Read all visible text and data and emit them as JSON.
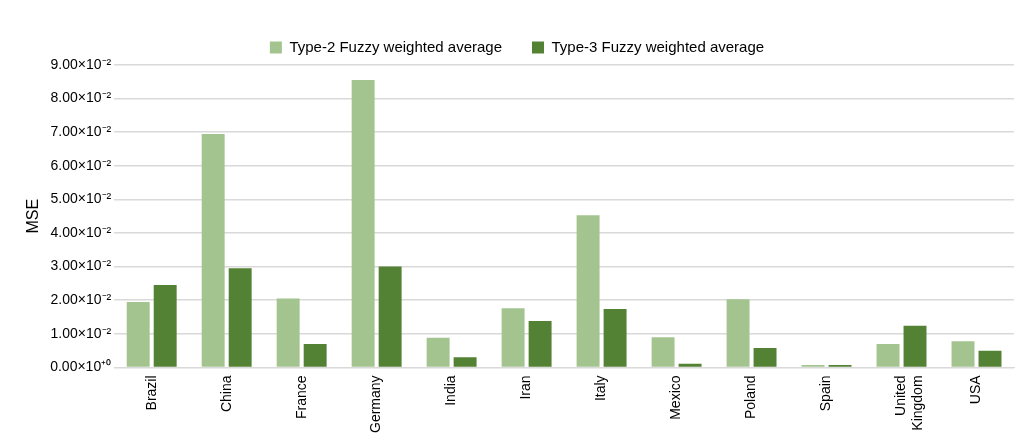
{
  "chart_data": {
    "type": "bar",
    "ylabel": "MSE",
    "categories": [
      "Brazil",
      "China",
      "France",
      "Germany",
      "India",
      "Iran",
      "Italy",
      "Mexico",
      "Poland",
      "Spain",
      "United Kingdom",
      "USA"
    ],
    "series": [
      {
        "name": "Type-2 Fuzzy weighted average",
        "color": "#a3c48e",
        "values": [
          0.0195,
          0.0695,
          0.0205,
          0.0855,
          0.0088,
          0.0176,
          0.0453,
          0.009,
          0.0203,
          0.0007,
          0.007,
          0.0078
        ]
      },
      {
        "name": "Type-3 Fuzzy weighted average",
        "color": "#548235",
        "values": [
          0.0245,
          0.0295,
          0.007,
          0.03,
          0.003,
          0.0138,
          0.0174,
          0.0011,
          0.0058,
          0.0007,
          0.0124,
          0.005
        ]
      }
    ],
    "ylim": [
      0,
      0.09
    ],
    "yticks": [
      {
        "value": 0,
        "label": "0.00×10⁺⁰"
      },
      {
        "value": 0.01,
        "label": "1.00×10⁻²"
      },
      {
        "value": 0.02,
        "label": "2.00×10⁻²"
      },
      {
        "value": 0.03,
        "label": "3.00×10⁻²"
      },
      {
        "value": 0.04,
        "label": "4.00×10⁻²"
      },
      {
        "value": 0.05,
        "label": "5.00×10⁻²"
      },
      {
        "value": 0.06,
        "label": "6.00×10⁻²"
      },
      {
        "value": 0.07,
        "label": "7.00×10⁻²"
      },
      {
        "value": 0.08,
        "label": "8.00×10⁻²"
      },
      {
        "value": 0.09,
        "label": "9.00×10⁻²"
      }
    ],
    "grid": "y",
    "legend": "top"
  }
}
